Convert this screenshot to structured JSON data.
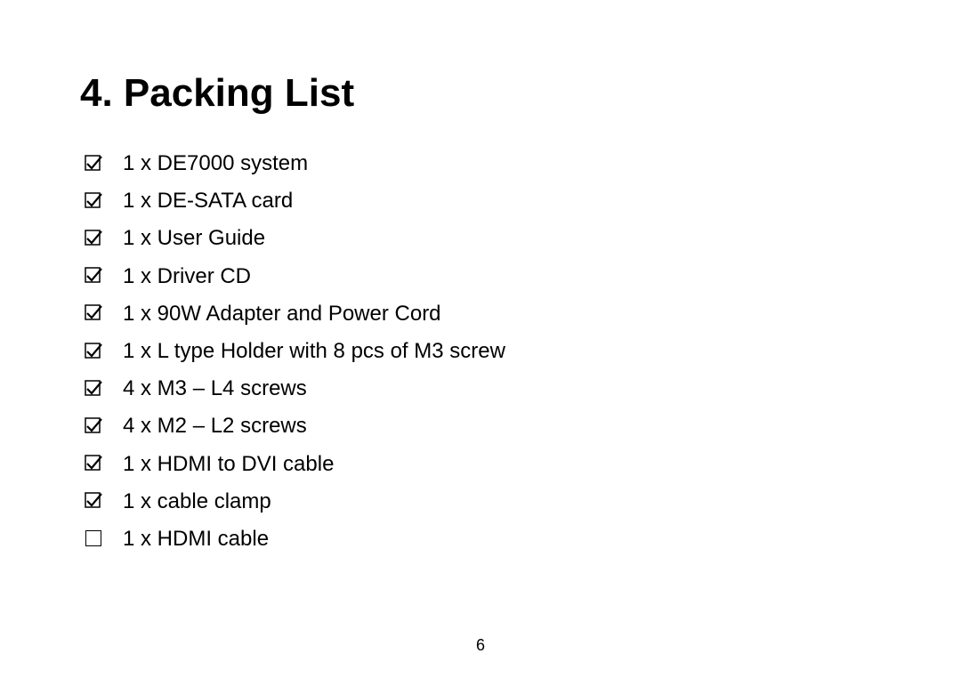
{
  "heading": "4. Packing List",
  "items": [
    {
      "label": "1 x DE7000 system",
      "checked": true
    },
    {
      "label": "1 x DE-SATA card",
      "checked": true
    },
    {
      "label": "1 x User Guide",
      "checked": true
    },
    {
      "label": "1 x Driver CD",
      "checked": true
    },
    {
      "label": "1 x 90W Adapter and Power Cord",
      "checked": true
    },
    {
      "label": "1 x L type Holder with 8 pcs of M3 screw",
      "checked": true
    },
    {
      "label": "4 x M3 – L4 screws",
      "checked": true
    },
    {
      "label": "4 x M2 – L2 screws",
      "checked": true
    },
    {
      "label": "1 x HDMI to DVI cable",
      "checked": true
    },
    {
      "label": "1 x cable clamp",
      "checked": true
    },
    {
      "label": "1 x HDMI cable",
      "checked": false
    }
  ],
  "pageNumber": "6",
  "colors": {
    "background": "#ffffff",
    "text": "#000000",
    "checkMark": "#000000",
    "boxBorder": "#000000"
  },
  "typography": {
    "headingSizePx": 44,
    "itemSizePx": 24,
    "pageNumberSizePx": 18,
    "fontFamily": "Arial"
  }
}
